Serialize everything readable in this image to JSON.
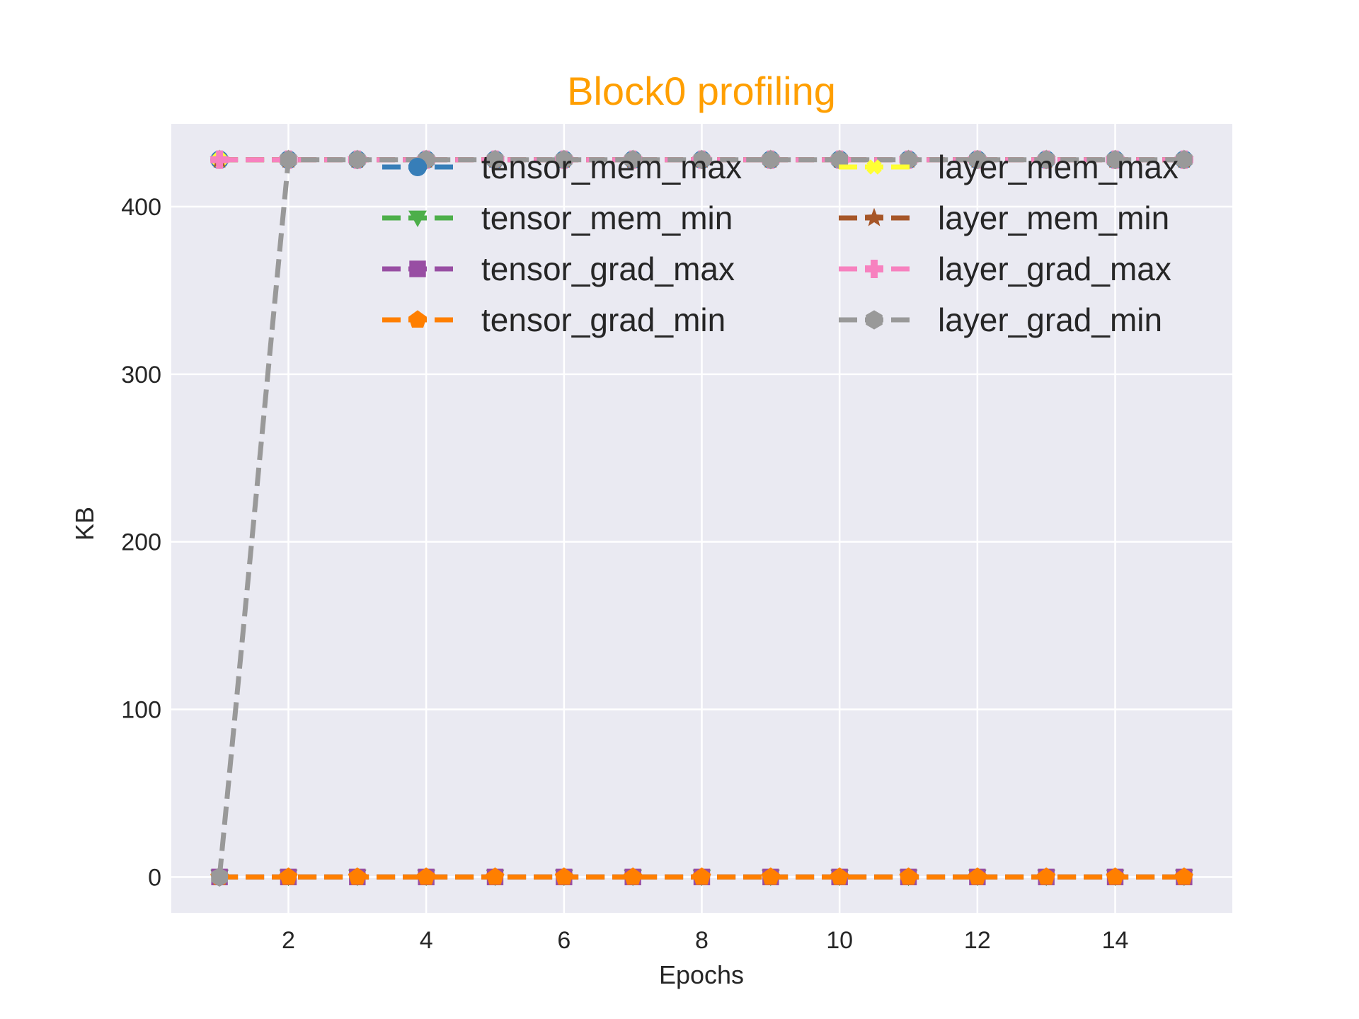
{
  "chart_data": {
    "type": "line",
    "title": "Block0 profiling",
    "title_color": "#ff9f00",
    "xlabel": "Epochs",
    "ylabel": "KB",
    "xlim": [
      0.3,
      15.7
    ],
    "ylim": [
      -21.4,
      449.4
    ],
    "xticks": [
      2,
      4,
      6,
      8,
      10,
      12,
      14
    ],
    "yticks": [
      0,
      100,
      200,
      300,
      400
    ],
    "grid": true,
    "background": "#eaeaf2",
    "legend_position": "top-right",
    "x": [
      1,
      2,
      3,
      4,
      5,
      6,
      7,
      8,
      9,
      10,
      11,
      12,
      13,
      14,
      15
    ],
    "series": [
      {
        "name": "tensor_mem_max",
        "color": "#377eb8",
        "marker": "circle",
        "values": [
          428,
          428,
          428,
          428,
          428,
          428,
          428,
          428,
          428,
          428,
          428,
          428,
          428,
          428,
          428
        ]
      },
      {
        "name": "tensor_mem_min",
        "color": "#4daf4a",
        "marker": "triangle-down",
        "values": [
          0,
          0,
          0,
          0,
          0,
          0,
          0,
          0,
          0,
          0,
          0,
          0,
          0,
          0,
          0
        ]
      },
      {
        "name": "tensor_grad_max",
        "color": "#984ea3",
        "marker": "square",
        "values": [
          0,
          0,
          0,
          0,
          0,
          0,
          0,
          0,
          0,
          0,
          0,
          0,
          0,
          0,
          0
        ]
      },
      {
        "name": "tensor_grad_min",
        "color": "#ff7f00",
        "marker": "pentagon",
        "values": [
          0,
          0,
          0,
          0,
          0,
          0,
          0,
          0,
          0,
          0,
          0,
          0,
          0,
          0,
          0
        ]
      },
      {
        "name": "layer_mem_max",
        "color": "#ffff33",
        "marker": "x",
        "values": [
          428,
          428,
          428,
          428,
          428,
          428,
          428,
          428,
          428,
          428,
          428,
          428,
          428,
          428,
          428
        ]
      },
      {
        "name": "layer_mem_min",
        "color": "#a65628",
        "marker": "star",
        "values": [
          428,
          428,
          428,
          428,
          428,
          428,
          428,
          428,
          428,
          428,
          428,
          428,
          428,
          428,
          428
        ]
      },
      {
        "name": "layer_grad_max",
        "color": "#f781bf",
        "marker": "plus",
        "values": [
          428,
          428,
          428,
          428,
          428,
          428,
          428,
          428,
          428,
          428,
          428,
          428,
          428,
          428,
          428
        ]
      },
      {
        "name": "layer_grad_min",
        "color": "#999999",
        "marker": "hexagon",
        "values": [
          0,
          428,
          428,
          428,
          428,
          428,
          428,
          428,
          428,
          428,
          428,
          428,
          428,
          428,
          428
        ]
      }
    ]
  }
}
